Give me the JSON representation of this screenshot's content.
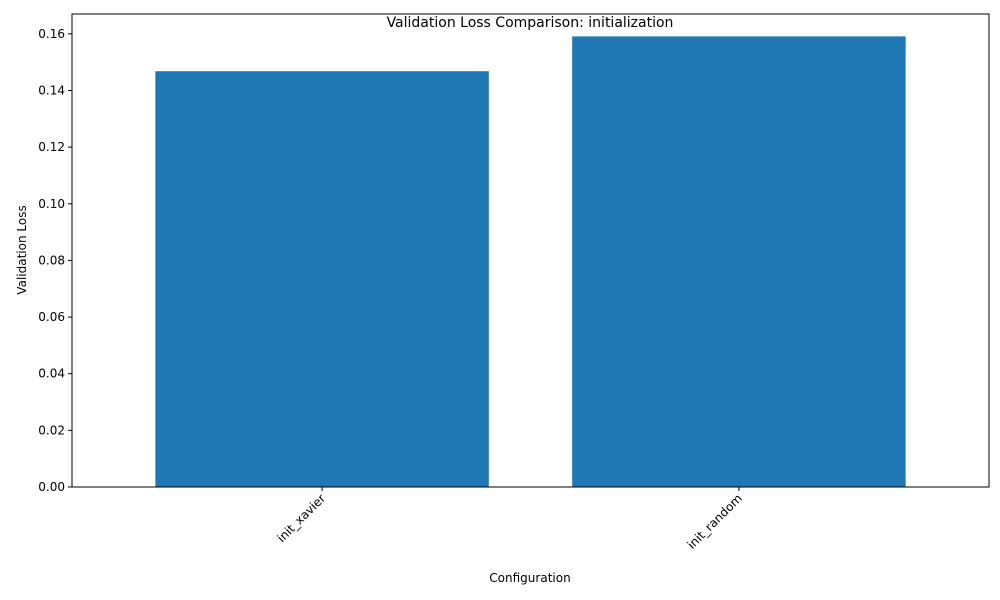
{
  "chart_data": {
    "type": "bar",
    "title": "Validation Loss Comparison: initialization",
    "xlabel": "Configuration",
    "ylabel": "Validation Loss",
    "categories": [
      "init_xavier",
      "init_random"
    ],
    "values": [
      0.1468,
      0.1591
    ],
    "ylim": [
      0,
      0.167
    ],
    "yticks": [
      0.0,
      0.02,
      0.04,
      0.06,
      0.08,
      0.1,
      0.12,
      0.14,
      0.16
    ],
    "ytick_labels": [
      "0.00",
      "0.02",
      "0.04",
      "0.06",
      "0.08",
      "0.10",
      "0.12",
      "0.14",
      "0.16"
    ],
    "bar_color": "#1f77b4",
    "xtick_rotation_deg": 45,
    "grid": false,
    "legend": "none"
  }
}
